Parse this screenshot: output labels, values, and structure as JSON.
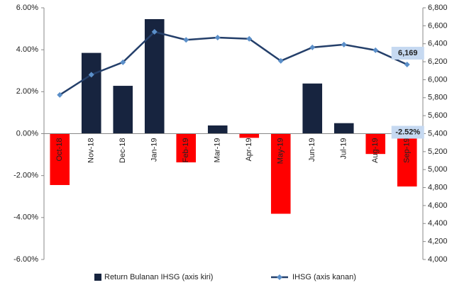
{
  "chart_data": {
    "type": "bar-line",
    "categories": [
      "Oct-18",
      "Nov-18",
      "Dec-18",
      "Jan-19",
      "Feb-19",
      "Mar-19",
      "Apr-19",
      "May-19",
      "Jun-19",
      "Jul-19",
      "Aug-19",
      "Sep-19"
    ],
    "series": [
      {
        "name": "Return Bulanan IHSG (axis kiri)",
        "type": "bar",
        "color": "#17243f",
        "negative_color": "#ff0000",
        "values": [
          -2.45,
          3.85,
          2.28,
          5.46,
          -1.37,
          0.39,
          -0.2,
          -3.82,
          2.39,
          0.5,
          -0.97,
          -2.52
        ],
        "value_labels": [
          null,
          null,
          null,
          null,
          null,
          null,
          null,
          null,
          null,
          null,
          null,
          "-2.52%"
        ]
      },
      {
        "name": "IHSG (axis kanan)",
        "type": "line",
        "axis": "y2",
        "color": "#243f6a",
        "marker_color": "#5b8fc9",
        "values": [
          5831,
          6056,
          6194,
          6533,
          6443,
          6469,
          6455,
          6209,
          6359,
          6391,
          6328,
          6169
        ],
        "value_labels": [
          null,
          null,
          null,
          null,
          null,
          null,
          null,
          null,
          null,
          null,
          null,
          "6,169"
        ]
      }
    ],
    "ylim": [
      -6,
      6
    ],
    "yticks": [
      {
        "value": -6,
        "label": "-6.00%"
      },
      {
        "value": -4,
        "label": "-4.00%"
      },
      {
        "value": -2,
        "label": "-2.00%"
      },
      {
        "value": 0,
        "label": "0.00%"
      },
      {
        "value": 2,
        "label": "2.00%"
      },
      {
        "value": 4,
        "label": "4.00%"
      },
      {
        "value": 6,
        "label": "6.00%"
      }
    ],
    "y2lim": [
      4000,
      6800
    ],
    "y2ticks": [
      {
        "value": 4000,
        "label": "4,000"
      },
      {
        "value": 4200,
        "label": "4,200"
      },
      {
        "value": 4400,
        "label": "4,400"
      },
      {
        "value": 4600,
        "label": "4,600"
      },
      {
        "value": 4800,
        "label": "4,800"
      },
      {
        "value": 5000,
        "label": "5,000"
      },
      {
        "value": 5200,
        "label": "5,200"
      },
      {
        "value": 5400,
        "label": "5,400"
      },
      {
        "value": 5600,
        "label": "5,600"
      },
      {
        "value": 5800,
        "label": "5,800"
      },
      {
        "value": 6000,
        "label": "6,000"
      },
      {
        "value": 6200,
        "label": "6,200"
      },
      {
        "value": 6400,
        "label": "6,400"
      },
      {
        "value": 6600,
        "label": "6,600"
      },
      {
        "value": 6800,
        "label": "6,800"
      }
    ],
    "grid": false,
    "legend": "bottom"
  }
}
